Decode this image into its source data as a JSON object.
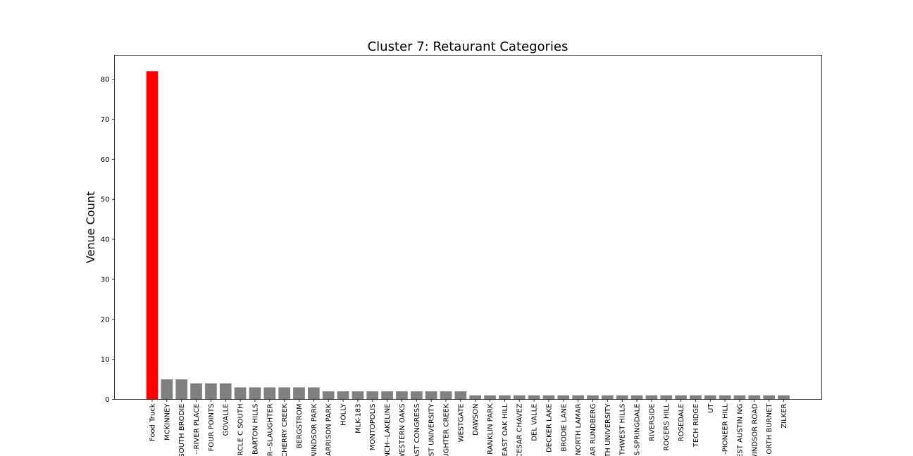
{
  "chart_data": {
    "type": "bar",
    "title": "Cluster 7: Retaurant Categories",
    "xlabel": "",
    "ylabel": "Venue Count",
    "ylim": [
      0,
      86
    ],
    "yticks": [
      0,
      10,
      20,
      30,
      40,
      50,
      60,
      70,
      80
    ],
    "grid": false,
    "categories": [
      "Food Truck",
      "MCKINNEY",
      "SOUTH BRODIE",
      "--RIVER PLACE",
      "FOUR POINTS",
      "GOVALLE",
      "RCLE C SOUTH",
      "BARTON HILLS",
      "R--SLAUGHTER",
      "CHERRY CREEK",
      "BERGSTROM",
      "WINDSOR PARK",
      "ARRISON PARK",
      "HOLLY",
      "MLK-183",
      "MONTOPOLIS",
      "NCH--LAKELINE",
      "WESTERN OAKS",
      "AST CONGRESS",
      "ST UNIVERSITY",
      "UGHTER CREEK",
      "WESTGATE",
      "DAWSON",
      "RANKLIN PARK",
      "EAST OAK HILL",
      "CESAR CHAVEZ",
      "DEL VALLE",
      "DECKER LAKE",
      "BRODIE LANE",
      "NORTH LAMAR",
      "AR RUNDBERG",
      "TH UNIVERSITY",
      "THWEST HILLS",
      "S-SPRINGDALE",
      "RIVERSIDE",
      "ROGERS HILL",
      "ROSEDALE",
      "TECH RIDGE",
      "UT",
      "-PIONEER HILL",
      "EST AUSTIN NG",
      "WINDSOR ROAD",
      "ORTH BURNET",
      "ZILKER"
    ],
    "values": [
      82,
      5,
      5,
      4,
      4,
      4,
      3,
      3,
      3,
      3,
      3,
      3,
      2,
      2,
      2,
      2,
      2,
      2,
      2,
      2,
      2,
      2,
      1,
      1,
      1,
      1,
      1,
      1,
      1,
      1,
      1,
      1,
      1,
      1,
      1,
      1,
      1,
      1,
      1,
      1,
      1,
      1,
      1,
      1
    ],
    "colors": {
      "highlight": "#ff0000",
      "default": "#808080",
      "axis": "#000000"
    },
    "highlight_index": 0
  }
}
